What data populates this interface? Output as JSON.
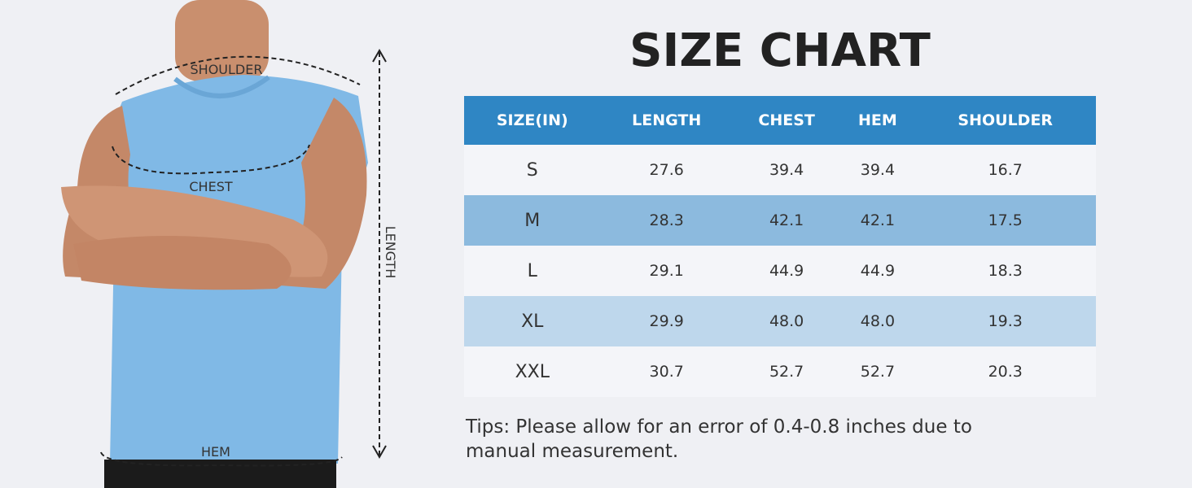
{
  "illustration": {
    "labels": {
      "shoulder": "SHOULDER",
      "chest": "CHEST",
      "length": "LENGTH",
      "hem": "HEM"
    }
  },
  "title": "SIZE CHART",
  "table": {
    "header": [
      "SIZE(IN)",
      "LENGTH",
      "CHEST",
      "HEM",
      "SHOULDER"
    ],
    "rows": [
      [
        "S",
        "27.6",
        "39.4",
        "39.4",
        "16.7"
      ],
      [
        "M",
        "28.3",
        "42.1",
        "42.1",
        "17.5"
      ],
      [
        "L",
        "29.1",
        "44.9",
        "44.9",
        "18.3"
      ],
      [
        "XL",
        "29.9",
        "48.0",
        "48.0",
        "19.3"
      ],
      [
        "XXL",
        "30.7",
        "52.7",
        "52.7",
        "20.3"
      ]
    ]
  },
  "tips": "Tips: Please allow for an error of 0.4-0.8 inches due to manual measurement."
}
